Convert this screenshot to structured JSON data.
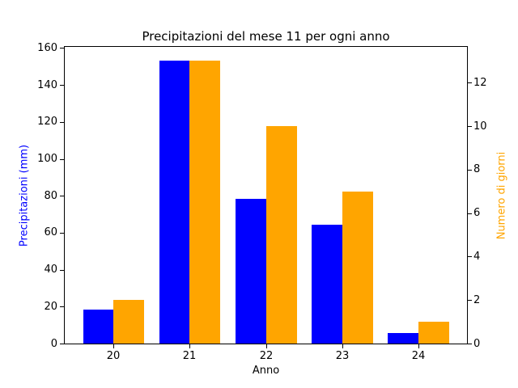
{
  "figure": {
    "background": "#ffffff"
  },
  "chart_data": {
    "type": "bar",
    "title": "Precipitazioni del mese 11 per ogni anno",
    "xlabel": "Anno",
    "categories": [
      "20",
      "21",
      "22",
      "23",
      "24"
    ],
    "series": [
      {
        "name": "Precipitazioni (mm)",
        "axis": "left",
        "color": "#0000ff",
        "values": [
          18.5,
          153,
          78.5,
          64.3,
          5.5
        ]
      },
      {
        "name": "Numero di giorni",
        "axis": "right",
        "color": "#ffa500",
        "values": [
          2,
          13,
          10,
          7,
          1
        ]
      }
    ],
    "left_axis": {
      "label": "Precipitazioni (mm)",
      "color": "#0000ff",
      "ticks": [
        0,
        20,
        40,
        60,
        80,
        100,
        120,
        140,
        160
      ],
      "range": [
        0,
        160.65
      ]
    },
    "right_axis": {
      "label": "Numero di giorni",
      "color": "#ffa500",
      "ticks": [
        0,
        2,
        4,
        6,
        8,
        10,
        12
      ],
      "range": [
        0,
        13.65
      ]
    },
    "grid": false,
    "legend": "none",
    "bar_width_units": 0.4,
    "xlim": [
      -0.64,
      4.64
    ]
  }
}
